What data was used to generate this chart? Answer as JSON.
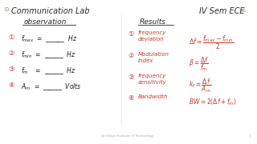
{
  "bg_color": "#ffffff",
  "title_left": "Communication Lab",
  "title_right": "IV Sem ECE",
  "section_obs": "observation",
  "section_res": "Results",
  "obs_items": [
    "f$_{max}$  =  ______  Hz",
    "f$_{min}$  =  ______  Hz",
    "f$_m$    =  ______  Hz",
    "A$_m$  =  ______  Volts"
  ],
  "res_labels": [
    "frequency\ndeviation",
    "Modulation\nindex",
    "frequency\nsensitivity",
    "Bandwidth"
  ],
  "res_formulas": [
    "$\\Delta f = \\dfrac{f_{max}-f_{min}}{2}$",
    "$\\beta = \\dfrac{\\Delta f}{f_m}$",
    "$k_f = \\dfrac{\\Delta f}{A_m}$",
    "$BW = 2(\\Delta f+f_m)$"
  ],
  "footer": "Jai Vidya Institute of Technology",
  "page_num": "1",
  "title_color": "#2a2a2a",
  "red_color": "#c8392b",
  "obs_color": "#1a1a1a",
  "formula_color": "#c8392b"
}
